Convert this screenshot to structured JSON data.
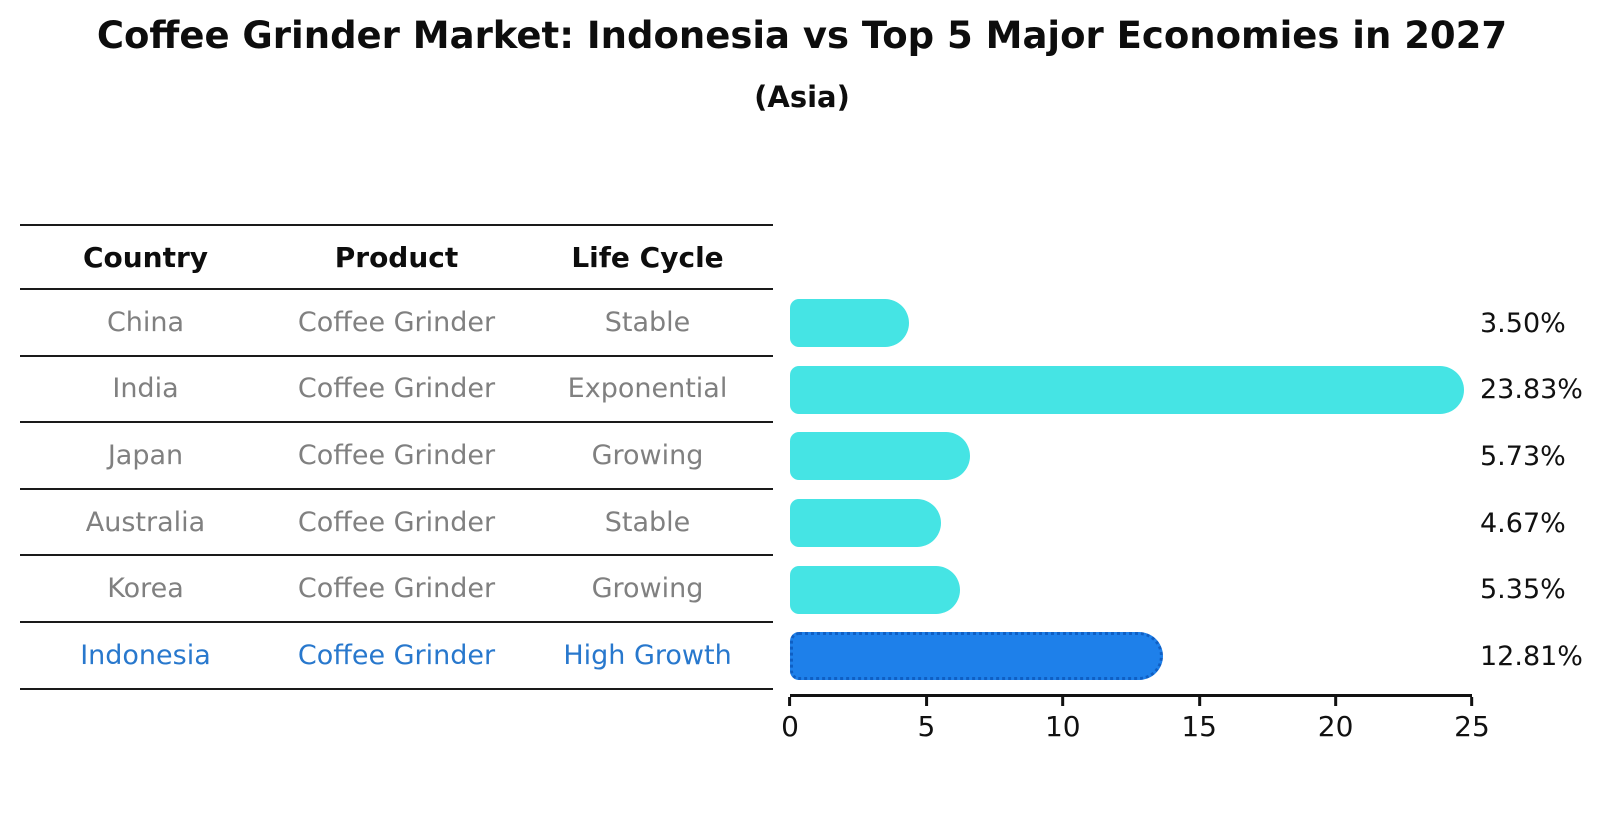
{
  "title": "Coffee Grinder Market: Indonesia vs Top 5 Major Economies in 2027",
  "subtitle": "(Asia)",
  "table": {
    "headers": [
      "Country",
      "Product",
      "Life Cycle"
    ],
    "rows": [
      {
        "country": "China",
        "product": "Coffee Grinder",
        "life_cycle": "Stable",
        "highlight": false
      },
      {
        "country": "India",
        "product": "Coffee Grinder",
        "life_cycle": "Exponential",
        "highlight": false
      },
      {
        "country": "Japan",
        "product": "Coffee Grinder",
        "life_cycle": "Growing",
        "highlight": false
      },
      {
        "country": "Australia",
        "product": "Coffee Grinder",
        "life_cycle": "Stable",
        "highlight": false
      },
      {
        "country": "Korea",
        "product": "Coffee Grinder",
        "life_cycle": "Growing",
        "highlight": false
      },
      {
        "country": "Indonesia",
        "product": "Coffee Grinder",
        "life_cycle": "High Growth",
        "highlight": true
      }
    ]
  },
  "chart_data": {
    "type": "bar",
    "orientation": "horizontal",
    "title": "Coffee Grinder Market: Indonesia vs Top 5 Major Economies in 2027",
    "subtitle": "(Asia)",
    "categories": [
      "China",
      "India",
      "Japan",
      "Australia",
      "Korea",
      "Indonesia"
    ],
    "values": [
      3.5,
      23.83,
      5.73,
      4.67,
      5.35,
      12.81
    ],
    "value_labels": [
      "3.50%",
      "23.83%",
      "5.73%",
      "4.67%",
      "5.35%",
      "12.81%"
    ],
    "xlim": [
      0,
      25
    ],
    "xticks": [
      "0",
      "5",
      "10",
      "15",
      "20",
      "25"
    ],
    "highlight_index": 5,
    "legend": "none",
    "grid": false,
    "colors": {
      "default_bar": "#45E4E4",
      "highlight_bar": "#1E80EA",
      "highlight_border": "#0F5FC4",
      "row_text": "#808080",
      "highlight_text": "#2878CD"
    }
  }
}
